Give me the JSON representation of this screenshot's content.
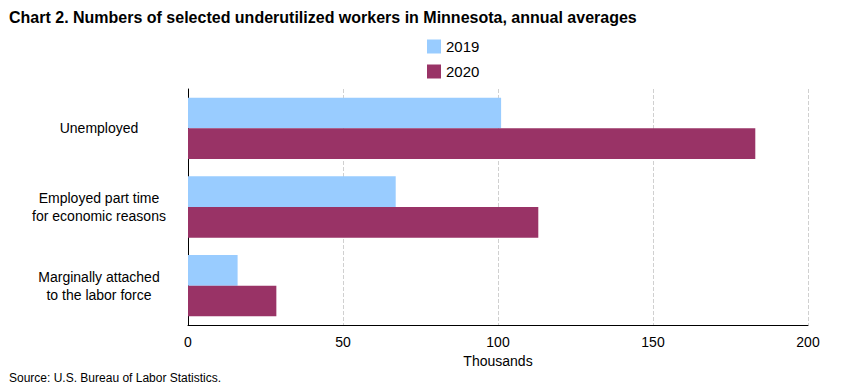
{
  "chart_data": {
    "type": "bar",
    "orientation": "horizontal",
    "title": "Chart 2. Numbers of selected underutilized workers in Minnesota, annual averages",
    "source": "Source: U.S. Bureau of Labor Statistics.",
    "categories": [
      "Unemployed",
      "Employed part time\nfor economic reasons",
      "Marginally attached\nto the labor force"
    ],
    "series": [
      {
        "name": "2019",
        "color": "#99ccff",
        "values": [
          101,
          67,
          16
        ]
      },
      {
        "name": "2020",
        "color": "#993366",
        "values": [
          183,
          113,
          28.5
        ]
      }
    ],
    "xlabel": "Thousands",
    "xlim": [
      0,
      200
    ],
    "xticks": [
      0,
      50,
      100,
      150,
      200
    ],
    "grid": true,
    "legend": "top"
  }
}
